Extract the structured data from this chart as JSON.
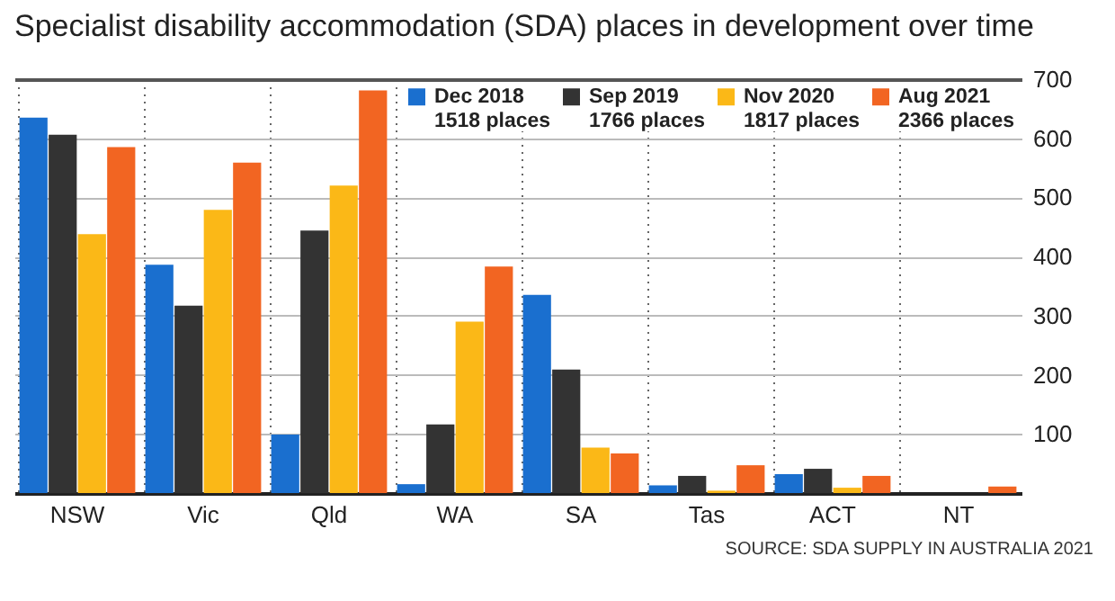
{
  "chart_data": {
    "type": "bar",
    "title": "Specialist disability accommodation (SDA) places in development over time",
    "categories": [
      "NSW",
      "Vic",
      "Qld",
      "WA",
      "SA",
      "Tas",
      "ACT",
      "NT"
    ],
    "series": [
      {
        "name": "Dec 2018",
        "color": "#1a6fcf",
        "values": [
          635,
          386,
          99,
          15,
          335,
          13,
          32,
          0
        ]
      },
      {
        "name": "Sep 2019",
        "color": "#333333",
        "values": [
          606,
          317,
          444,
          116,
          209,
          29,
          41,
          0
        ]
      },
      {
        "name": "Nov 2020",
        "color": "#fbb817",
        "values": [
          438,
          479,
          520,
          290,
          77,
          4,
          9,
          0
        ]
      },
      {
        "name": "Aug 2021",
        "color": "#f26522",
        "values": [
          585,
          559,
          681,
          383,
          67,
          47,
          29,
          11
        ]
      }
    ],
    "annotations": [
      "1518 places",
      "1766 places",
      "1817 places",
      "2366 places",
      "SOURCE: SDA SUPPLY IN AUSTRALIA 2021"
    ],
    "ylim": [
      0,
      700
    ],
    "yticks": [
      100,
      200,
      300,
      400,
      500,
      600,
      700
    ],
    "grid": true,
    "legend": "top right"
  }
}
